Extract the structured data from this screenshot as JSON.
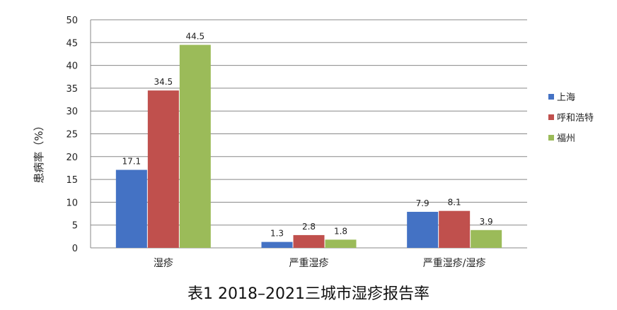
{
  "caption": "表1 2018–2021三城市湿疹报告率",
  "colors": {
    "上海": "#4472c4",
    "呼和浩特": "#c0504d",
    "福州": "#9bbb59",
    "grid": "#888888"
  },
  "chart_data": {
    "type": "bar",
    "categories": [
      "湿疹",
      "严重湿疹",
      "严重湿疹/湿疹"
    ],
    "series": [
      {
        "name": "上海",
        "values": [
          17.1,
          1.3,
          7.9
        ]
      },
      {
        "name": "呼和浩特",
        "values": [
          34.5,
          2.8,
          8.1
        ]
      },
      {
        "name": "福州",
        "values": [
          44.5,
          1.8,
          3.9
        ]
      }
    ],
    "ylabel": "患病率（%）",
    "ylim": [
      0,
      50
    ],
    "yticks": [
      0,
      5,
      10,
      15,
      20,
      25,
      30,
      35,
      40,
      45,
      50
    ],
    "grid": true,
    "legend": "right"
  }
}
